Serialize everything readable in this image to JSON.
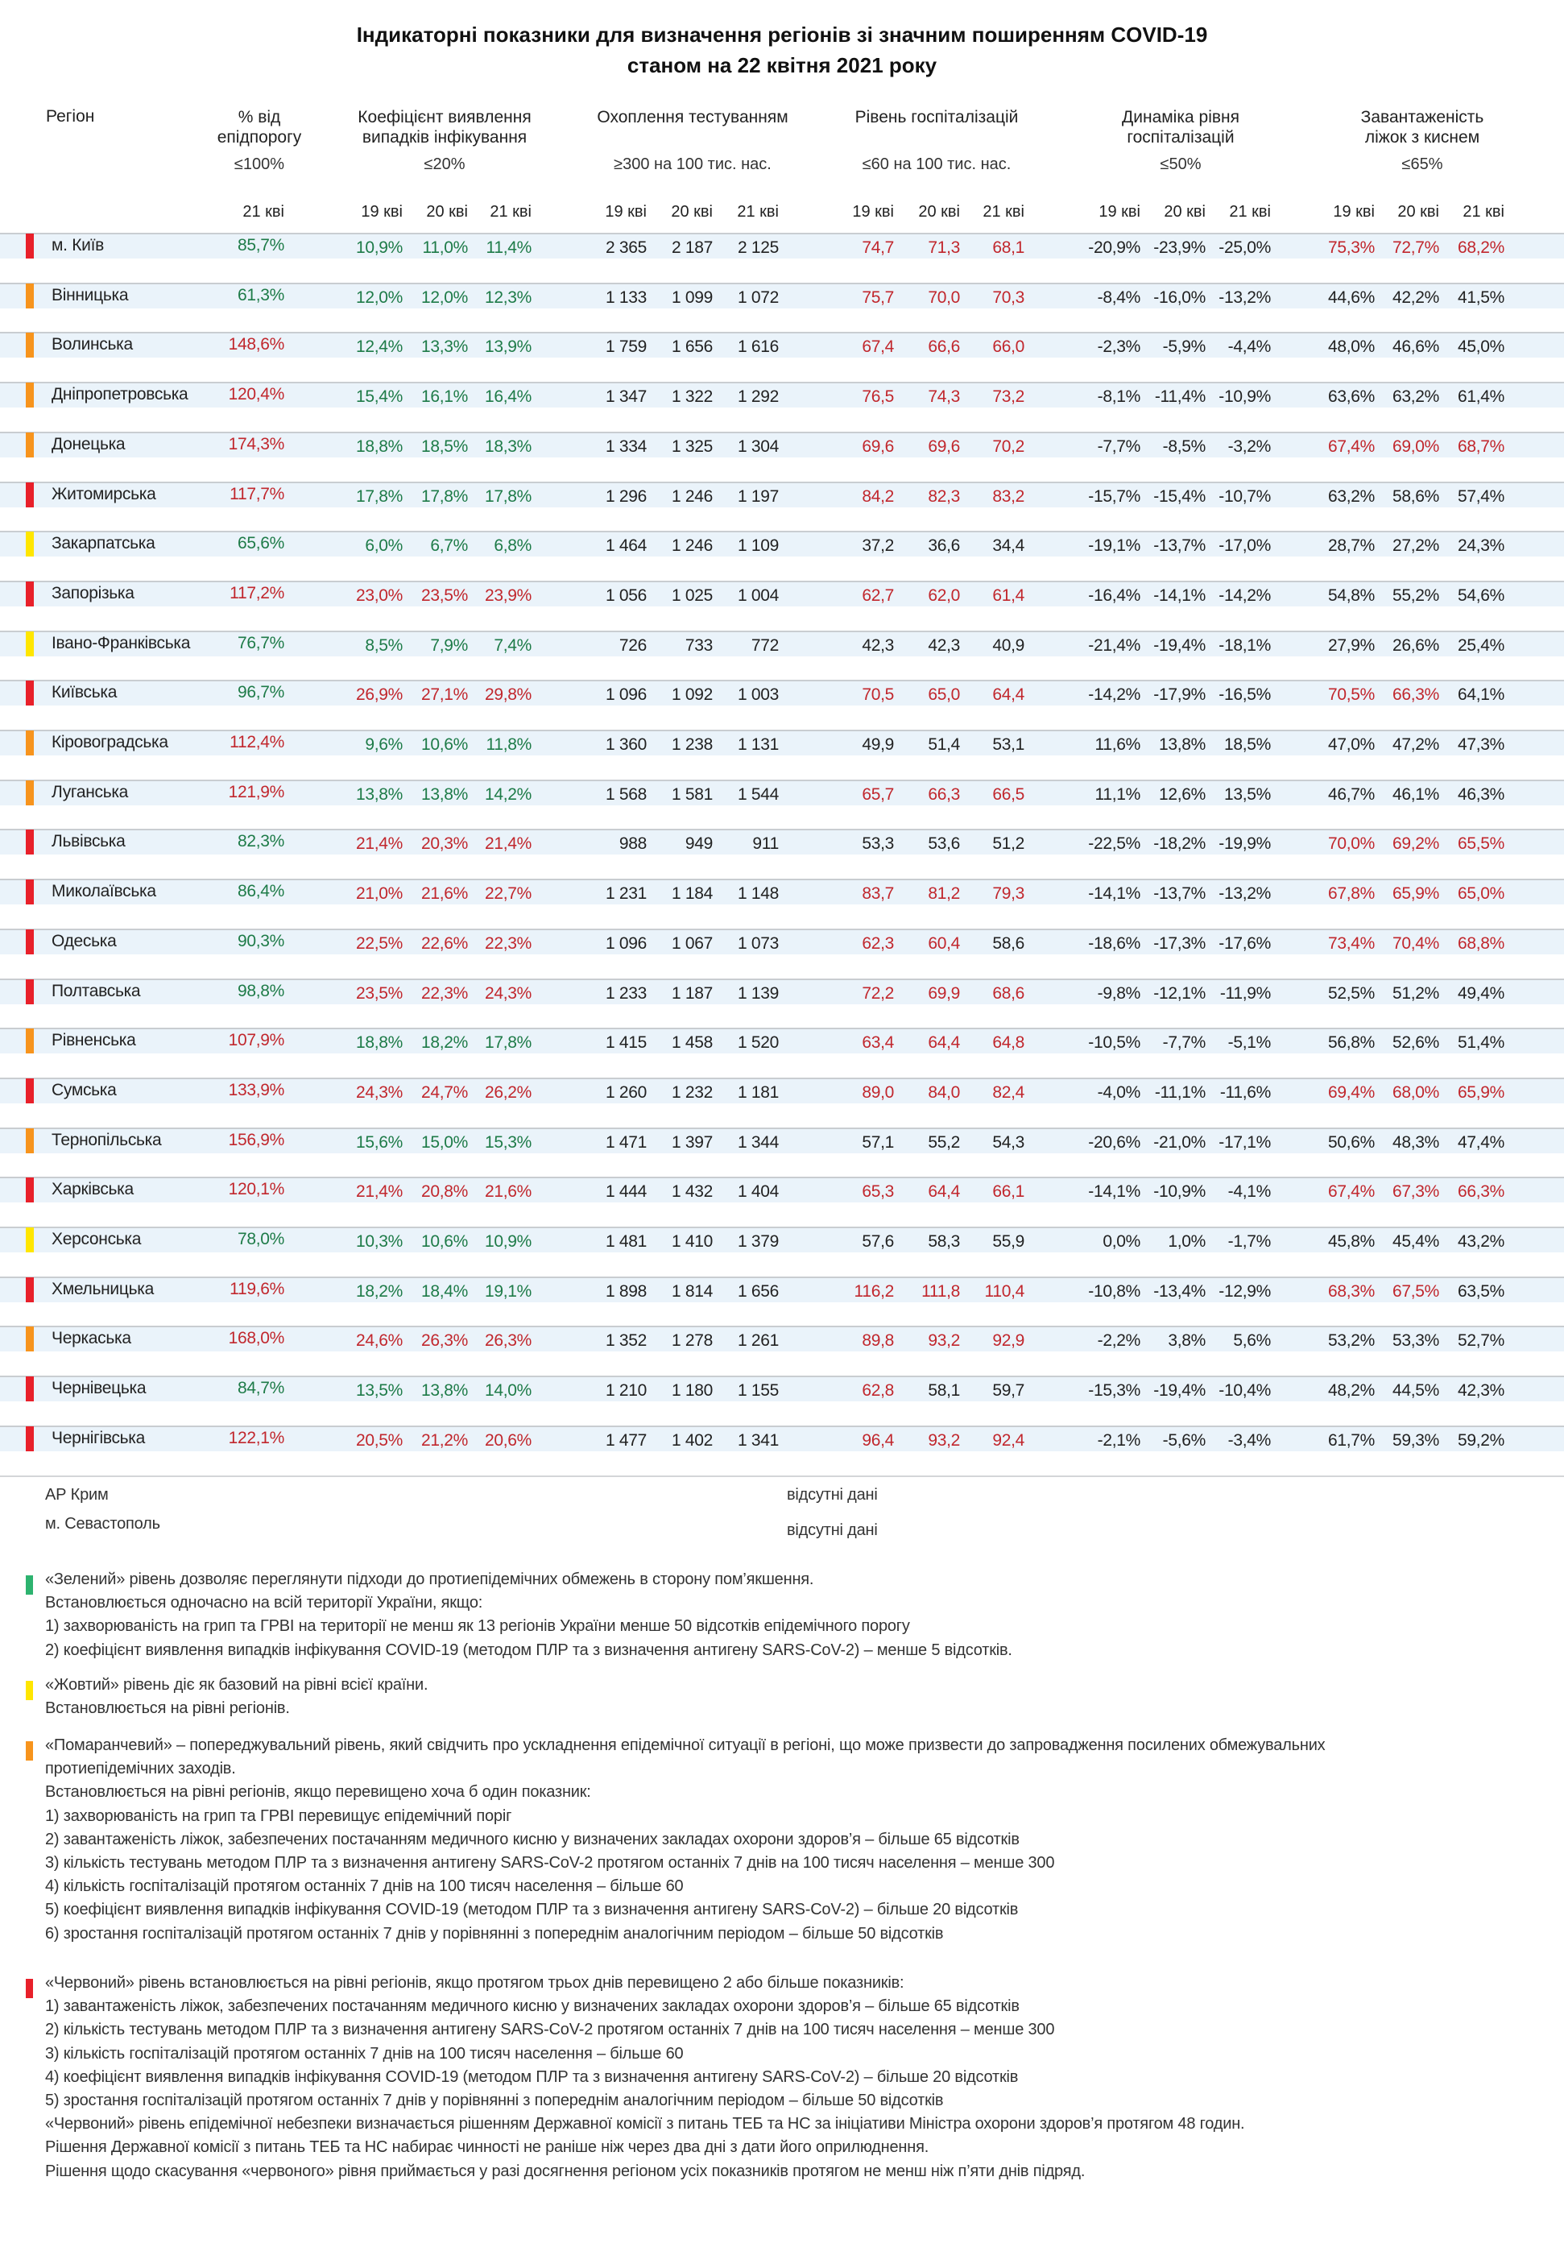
{
  "title": {
    "line1": "Індикаторні показники для визначення регіонів зі значним поширенням COVID-19",
    "line2": "станом на 22 квітня 2021 року"
  },
  "colors": {
    "red": "#e8202a",
    "orange": "#f7941d",
    "yellow": "#ffe600",
    "green": "#2db36f",
    "text_over": "#c1272d",
    "text_ok": "#1e7b48",
    "text_neutral": "#222222",
    "row_band": "#eaf3fa"
  },
  "header": {
    "region": "Регіон",
    "groups": [
      {
        "key": "epid",
        "title1": "% від",
        "title2": "епідпорогу",
        "threshold": "≤100%",
        "dates": [
          "21 кві"
        ]
      },
      {
        "key": "coef",
        "title1": "Коефіцієнт виявлення",
        "title2": "випадків інфікування",
        "threshold": "≤20%",
        "dates": [
          "19 кві",
          "20 кві",
          "21 кві"
        ]
      },
      {
        "key": "test",
        "title1": "Охоплення тестуванням",
        "title2": "",
        "threshold": "≥300 на 100 тис. нас.",
        "dates": [
          "19 кві",
          "20 кві",
          "21 кві"
        ]
      },
      {
        "key": "hosp",
        "title1": "Рівень госпіталізацій",
        "title2": "",
        "threshold": "≤60 на 100 тис. нас.",
        "dates": [
          "19 кві",
          "20 кві",
          "21 кві"
        ]
      },
      {
        "key": "dyn",
        "title1": "Динаміка рівня",
        "title2": "госпіталізацій",
        "threshold": "≤50%",
        "dates": [
          "19 кві",
          "20 кві",
          "21 кві"
        ]
      },
      {
        "key": "beds",
        "title1": "Завантаженість",
        "title2": "ліжок з киснем",
        "threshold": "≤65%",
        "dates": [
          "19 кві",
          "20 кві",
          "21 кві"
        ]
      }
    ]
  },
  "highlight_rules": {
    "epid": {
      "over_above": 100
    },
    "coef": {
      "over_above": 20
    },
    "hosp": {
      "over_above": 60
    },
    "beds": {
      "over_from": 65
    }
  },
  "rows": [
    {
      "region": "м. Київ",
      "level": "red",
      "epid": [
        "85,7%"
      ],
      "coef": [
        "10,9%",
        "11,0%",
        "11,4%"
      ],
      "test": [
        "2 365",
        "2 187",
        "2 125"
      ],
      "hosp": [
        "74,7",
        "71,3",
        "68,1"
      ],
      "dyn": [
        "-20,9%",
        "-23,9%",
        "-25,0%"
      ],
      "beds": [
        "75,3%",
        "72,7%",
        "68,2%"
      ]
    },
    {
      "region": "Вінницька",
      "level": "orange",
      "epid": [
        "61,3%"
      ],
      "coef": [
        "12,0%",
        "12,0%",
        "12,3%"
      ],
      "test": [
        "1 133",
        "1 099",
        "1 072"
      ],
      "hosp": [
        "75,7",
        "70,0",
        "70,3"
      ],
      "dyn": [
        "-8,4%",
        "-16,0%",
        "-13,2%"
      ],
      "beds": [
        "44,6%",
        "42,2%",
        "41,5%"
      ]
    },
    {
      "region": "Волинська",
      "level": "orange",
      "epid": [
        "148,6%"
      ],
      "coef": [
        "12,4%",
        "13,3%",
        "13,9%"
      ],
      "test": [
        "1 759",
        "1 656",
        "1 616"
      ],
      "hosp": [
        "67,4",
        "66,6",
        "66,0"
      ],
      "dyn": [
        "-2,3%",
        "-5,9%",
        "-4,4%"
      ],
      "beds": [
        "48,0%",
        "46,6%",
        "45,0%"
      ]
    },
    {
      "region": "Дніпропетровська",
      "level": "orange",
      "epid": [
        "120,4%"
      ],
      "coef": [
        "15,4%",
        "16,1%",
        "16,4%"
      ],
      "test": [
        "1 347",
        "1 322",
        "1 292"
      ],
      "hosp": [
        "76,5",
        "74,3",
        "73,2"
      ],
      "dyn": [
        "-8,1%",
        "-11,4%",
        "-10,9%"
      ],
      "beds": [
        "63,6%",
        "63,2%",
        "61,4%"
      ]
    },
    {
      "region": "Донецька",
      "level": "orange",
      "epid": [
        "174,3%"
      ],
      "coef": [
        "18,8%",
        "18,5%",
        "18,3%"
      ],
      "test": [
        "1 334",
        "1 325",
        "1 304"
      ],
      "hosp": [
        "69,6",
        "69,6",
        "70,2"
      ],
      "dyn": [
        "-7,7%",
        "-8,5%",
        "-3,2%"
      ],
      "beds": [
        "67,4%",
        "69,0%",
        "68,7%"
      ]
    },
    {
      "region": "Житомирська",
      "level": "red",
      "epid": [
        "117,7%"
      ],
      "coef": [
        "17,8%",
        "17,8%",
        "17,8%"
      ],
      "test": [
        "1 296",
        "1 246",
        "1 197"
      ],
      "hosp": [
        "84,2",
        "82,3",
        "83,2"
      ],
      "dyn": [
        "-15,7%",
        "-15,4%",
        "-10,7%"
      ],
      "beds": [
        "63,2%",
        "58,6%",
        "57,4%"
      ]
    },
    {
      "region": "Закарпатська",
      "level": "yellow",
      "epid": [
        "65,6%"
      ],
      "coef": [
        "6,0%",
        "6,7%",
        "6,8%"
      ],
      "test": [
        "1 464",
        "1 246",
        "1 109"
      ],
      "hosp": [
        "37,2",
        "36,6",
        "34,4"
      ],
      "dyn": [
        "-19,1%",
        "-13,7%",
        "-17,0%"
      ],
      "beds": [
        "28,7%",
        "27,2%",
        "24,3%"
      ]
    },
    {
      "region": "Запорізька",
      "level": "red",
      "epid": [
        "117,2%"
      ],
      "coef": [
        "23,0%",
        "23,5%",
        "23,9%"
      ],
      "test": [
        "1 056",
        "1 025",
        "1 004"
      ],
      "hosp": [
        "62,7",
        "62,0",
        "61,4"
      ],
      "dyn": [
        "-16,4%",
        "-14,1%",
        "-14,2%"
      ],
      "beds": [
        "54,8%",
        "55,2%",
        "54,6%"
      ]
    },
    {
      "region": "Івано-Франківська",
      "level": "yellow",
      "epid": [
        "76,7%"
      ],
      "coef": [
        "8,5%",
        "7,9%",
        "7,4%"
      ],
      "test": [
        "726",
        "733",
        "772"
      ],
      "hosp": [
        "42,3",
        "42,3",
        "40,9"
      ],
      "dyn": [
        "-21,4%",
        "-19,4%",
        "-18,1%"
      ],
      "beds": [
        "27,9%",
        "26,6%",
        "25,4%"
      ]
    },
    {
      "region": "Київська",
      "level": "red",
      "epid": [
        "96,7%"
      ],
      "coef": [
        "26,9%",
        "27,1%",
        "29,8%"
      ],
      "test": [
        "1 096",
        "1 092",
        "1 003"
      ],
      "hosp": [
        "70,5",
        "65,0",
        "64,4"
      ],
      "dyn": [
        "-14,2%",
        "-17,9%",
        "-16,5%"
      ],
      "beds": [
        "70,5%",
        "66,3%",
        "64,1%"
      ]
    },
    {
      "region": "Кіровоградська",
      "level": "orange",
      "epid": [
        "112,4%"
      ],
      "coef": [
        "9,6%",
        "10,6%",
        "11,8%"
      ],
      "test": [
        "1 360",
        "1 238",
        "1 131"
      ],
      "hosp": [
        "49,9",
        "51,4",
        "53,1"
      ],
      "dyn": [
        "11,6%",
        "13,8%",
        "18,5%"
      ],
      "beds": [
        "47,0%",
        "47,2%",
        "47,3%"
      ]
    },
    {
      "region": "Луганська",
      "level": "orange",
      "epid": [
        "121,9%"
      ],
      "coef": [
        "13,8%",
        "13,8%",
        "14,2%"
      ],
      "test": [
        "1 568",
        "1 581",
        "1 544"
      ],
      "hosp": [
        "65,7",
        "66,3",
        "66,5"
      ],
      "dyn": [
        "11,1%",
        "12,6%",
        "13,5%"
      ],
      "beds": [
        "46,7%",
        "46,1%",
        "46,3%"
      ]
    },
    {
      "region": "Львівська",
      "level": "red",
      "epid": [
        "82,3%"
      ],
      "coef": [
        "21,4%",
        "20,3%",
        "21,4%"
      ],
      "test": [
        "988",
        "949",
        "911"
      ],
      "hosp": [
        "53,3",
        "53,6",
        "51,2"
      ],
      "dyn": [
        "-22,5%",
        "-18,2%",
        "-19,9%"
      ],
      "beds": [
        "70,0%",
        "69,2%",
        "65,5%"
      ]
    },
    {
      "region": "Миколаївська",
      "level": "red",
      "epid": [
        "86,4%"
      ],
      "coef": [
        "21,0%",
        "21,6%",
        "22,7%"
      ],
      "test": [
        "1 231",
        "1 184",
        "1 148"
      ],
      "hosp": [
        "83,7",
        "81,2",
        "79,3"
      ],
      "dyn": [
        "-14,1%",
        "-13,7%",
        "-13,2%"
      ],
      "beds": [
        "67,8%",
        "65,9%",
        "65,0%"
      ]
    },
    {
      "region": "Одеська",
      "level": "red",
      "epid": [
        "90,3%"
      ],
      "coef": [
        "22,5%",
        "22,6%",
        "22,3%"
      ],
      "test": [
        "1 096",
        "1 067",
        "1 073"
      ],
      "hosp": [
        "62,3",
        "60,4",
        "58,6"
      ],
      "dyn": [
        "-18,6%",
        "-17,3%",
        "-17,6%"
      ],
      "beds": [
        "73,4%",
        "70,4%",
        "68,8%"
      ]
    },
    {
      "region": "Полтавська",
      "level": "red",
      "epid": [
        "98,8%"
      ],
      "coef": [
        "23,5%",
        "22,3%",
        "24,3%"
      ],
      "test": [
        "1 233",
        "1 187",
        "1 139"
      ],
      "hosp": [
        "72,2",
        "69,9",
        "68,6"
      ],
      "dyn": [
        "-9,8%",
        "-12,1%",
        "-11,9%"
      ],
      "beds": [
        "52,5%",
        "51,2%",
        "49,4%"
      ]
    },
    {
      "region": "Рівненська",
      "level": "orange",
      "epid": [
        "107,9%"
      ],
      "coef": [
        "18,8%",
        "18,2%",
        "17,8%"
      ],
      "test": [
        "1 415",
        "1 458",
        "1 520"
      ],
      "hosp": [
        "63,4",
        "64,4",
        "64,8"
      ],
      "dyn": [
        "-10,5%",
        "-7,7%",
        "-5,1%"
      ],
      "beds": [
        "56,8%",
        "52,6%",
        "51,4%"
      ]
    },
    {
      "region": "Сумська",
      "level": "red",
      "epid": [
        "133,9%"
      ],
      "coef": [
        "24,3%",
        "24,7%",
        "26,2%"
      ],
      "test": [
        "1 260",
        "1 232",
        "1 181"
      ],
      "hosp": [
        "89,0",
        "84,0",
        "82,4"
      ],
      "dyn": [
        "-4,0%",
        "-11,1%",
        "-11,6%"
      ],
      "beds": [
        "69,4%",
        "68,0%",
        "65,9%"
      ]
    },
    {
      "region": "Тернопільська",
      "level": "orange",
      "epid": [
        "156,9%"
      ],
      "coef": [
        "15,6%",
        "15,0%",
        "15,3%"
      ],
      "test": [
        "1 471",
        "1 397",
        "1 344"
      ],
      "hosp": [
        "57,1",
        "55,2",
        "54,3"
      ],
      "dyn": [
        "-20,6%",
        "-21,0%",
        "-17,1%"
      ],
      "beds": [
        "50,6%",
        "48,3%",
        "47,4%"
      ]
    },
    {
      "region": "Харківська",
      "level": "red",
      "epid": [
        "120,1%"
      ],
      "coef": [
        "21,4%",
        "20,8%",
        "21,6%"
      ],
      "test": [
        "1 444",
        "1 432",
        "1 404"
      ],
      "hosp": [
        "65,3",
        "64,4",
        "66,1"
      ],
      "dyn": [
        "-14,1%",
        "-10,9%",
        "-4,1%"
      ],
      "beds": [
        "67,4%",
        "67,3%",
        "66,3%"
      ]
    },
    {
      "region": "Херсонська",
      "level": "yellow",
      "epid": [
        "78,0%"
      ],
      "coef": [
        "10,3%",
        "10,6%",
        "10,9%"
      ],
      "test": [
        "1 481",
        "1 410",
        "1 379"
      ],
      "hosp": [
        "57,6",
        "58,3",
        "55,9"
      ],
      "dyn": [
        "0,0%",
        "1,0%",
        "-1,7%"
      ],
      "beds": [
        "45,8%",
        "45,4%",
        "43,2%"
      ]
    },
    {
      "region": "Хмельницька",
      "level": "red",
      "epid": [
        "119,6%"
      ],
      "coef": [
        "18,2%",
        "18,4%",
        "19,1%"
      ],
      "test": [
        "1 898",
        "1 814",
        "1 656"
      ],
      "hosp": [
        "116,2",
        "111,8",
        "110,4"
      ],
      "dyn": [
        "-10,8%",
        "-13,4%",
        "-12,9%"
      ],
      "beds": [
        "68,3%",
        "67,5%",
        "63,5%"
      ]
    },
    {
      "region": "Черкаська",
      "level": "orange",
      "epid": [
        "168,0%"
      ],
      "coef": [
        "24,6%",
        "26,3%",
        "26,3%"
      ],
      "test": [
        "1 352",
        "1 278",
        "1 261"
      ],
      "hosp": [
        "89,8",
        "93,2",
        "92,9"
      ],
      "dyn": [
        "-2,2%",
        "3,8%",
        "5,6%"
      ],
      "beds": [
        "53,2%",
        "53,3%",
        "52,7%"
      ]
    },
    {
      "region": "Чернівецька",
      "level": "red",
      "epid": [
        "84,7%"
      ],
      "coef": [
        "13,5%",
        "13,8%",
        "14,0%"
      ],
      "test": [
        "1 210",
        "1 180",
        "1 155"
      ],
      "hosp": [
        "62,8",
        "58,1",
        "59,7"
      ],
      "dyn": [
        "-15,3%",
        "-19,4%",
        "-10,4%"
      ],
      "beds": [
        "48,2%",
        "44,5%",
        "42,3%"
      ]
    },
    {
      "region": "Чернігівська",
      "level": "red",
      "epid": [
        "122,1%"
      ],
      "coef": [
        "20,5%",
        "21,2%",
        "20,6%"
      ],
      "test": [
        "1 477",
        "1 402",
        "1 341"
      ],
      "hosp": [
        "96,4",
        "93,2",
        "92,4"
      ],
      "dyn": [
        "-2,1%",
        "-5,6%",
        "-3,4%"
      ],
      "beds": [
        "61,7%",
        "59,3%",
        "59,2%"
      ]
    }
  ],
  "missing": [
    {
      "region": "АР Крим",
      "value": "відсутні дані"
    },
    {
      "region": "м. Севастополь",
      "value": "відсутні дані"
    }
  ],
  "legend": [
    {
      "level": "green",
      "lines": [
        "«Зелений» рівень дозволяє переглянути підходи до протиепідемічних обмежень в сторону пом’якшення.",
        "Встановлюється одночасно на всій території України, якщо:",
        "1) захворюваність на грип та ГРВІ на території не менш як 13 регіонів України менше 50 відсотків епідемічного порогу",
        "2) коефіцієнт виявлення випадків інфікування COVID-19 (методом ПЛР та з визначення антигену SARS-CoV-2) – менше 5 відсотків."
      ]
    },
    {
      "level": "yellow",
      "lines": [
        "«Жовтий» рівень діє як базовий на рівні всієї країни.",
        "Встановлюється на рівні регіонів."
      ]
    },
    {
      "level": "orange",
      "lines": [
        "«Помаранчевий» – попереджувальний рівень, який свідчить про ускладнення епідемічної ситуації в регіоні, що може призвести до запровадження посилених обмежувальних",
        "протиепідемічних заходів.",
        "Встановлюється на рівні регіонів, якщо перевищено хоча б один показник:",
        "1) захворюваність на грип та ГРВІ перевищує епідемічний поріг",
        "2) завантаженість ліжок, забезпечених постачанням медичного кисню у визначених закладах охорони здоров’я – більше 65 відсотків",
        "3) кількість тестувань методом ПЛР та з визначення антигену SARS-CoV-2 протягом останніх 7 днів на 100 тисяч населення – менше 300",
        "4) кількість госпіталізацій протягом останніх 7 днів на 100 тисяч населення – більше 60",
        "5) коефіцієнт виявлення випадків інфікування COVID-19 (методом ПЛР та з визначення антигену SARS-CoV-2) – більше 20 відсотків",
        "6) зростання госпіталізацій протягом останніх 7 днів у порівнянні з попереднім аналогічним періодом – більше 50 відсотків"
      ]
    },
    {
      "level": "red",
      "lines": [
        "«Червоний» рівень встановлюється на рівні регіонів, якщо протягом трьох днів перевищено 2 або більше показників:",
        "1) завантаженість ліжок, забезпечених постачанням медичного кисню у визначених закладах охорони здоров’я – більше 65 відсотків",
        "2) кількість тестувань методом ПЛР та з визначення антигену SARS-CoV-2 протягом останніх 7 днів на 100 тисяч населення – менше 300",
        "3) кількість госпіталізацій протягом останніх 7 днів на 100 тисяч населення – більше 60",
        "4) коефіцієнт виявлення випадків інфікування COVID-19 (методом ПЛР та з визначення антигену SARS-CoV-2) – більше 20 відсотків",
        "5) зростання госпіталізацій протягом останніх 7 днів у порівнянні з попереднім аналогічним періодом – більше 50 відсотків",
        "«Червоний» рівень епідемічної небезпеки визначається рішенням Державної комісії з питань ТЕБ та НС за ініціативи Міністра охорони здоров’я протягом 48 годин.",
        "Рішення Державної комісії з питань ТЕБ та НС набирає чинності не раніше ніж через два дні з дати його оприлюднення.",
        "Рішення щодо скасування «червоного» рівня приймається у разі досягнення регіоном усіх показників протягом не менш ніж п’яти днів підряд."
      ]
    }
  ]
}
